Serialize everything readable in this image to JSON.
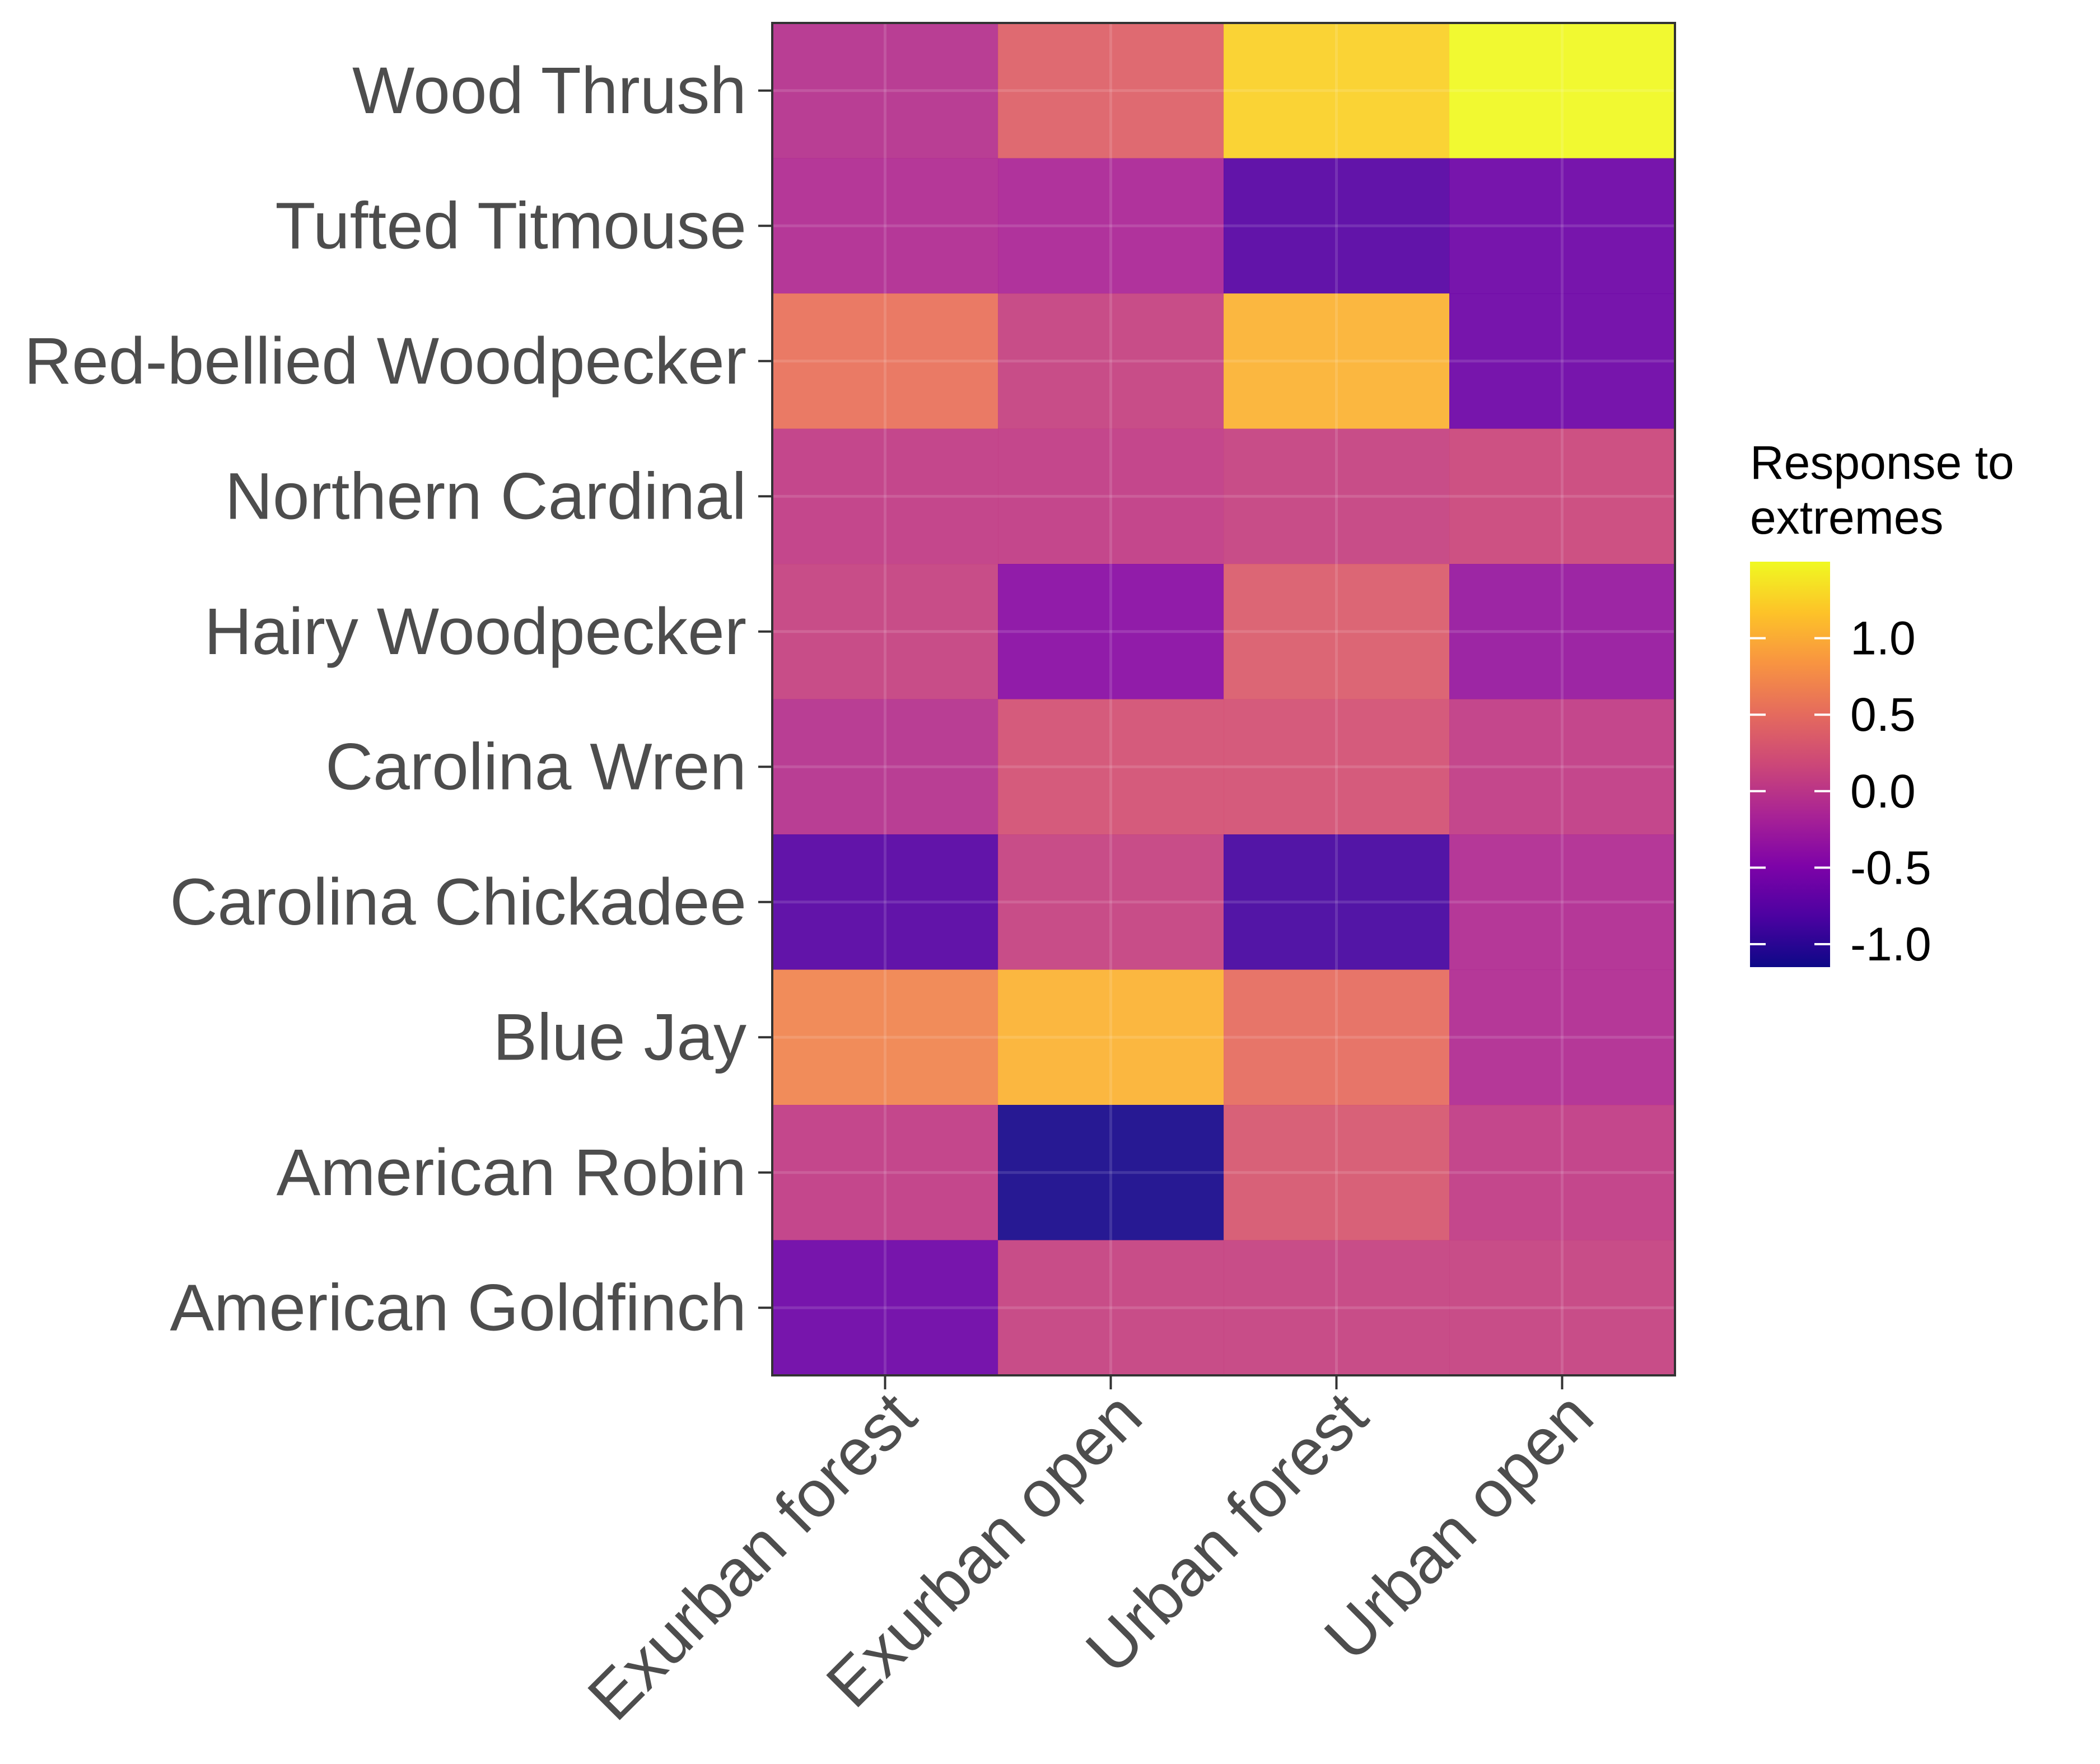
{
  "chart_data": {
    "type": "heatmap",
    "x_categories": [
      "Exurban forest",
      "Exurban open",
      "Urban forest",
      "Urban open"
    ],
    "y_categories": [
      "Wood Thrush",
      "Tufted Titmouse",
      "Red-bellied Woodpecker",
      "Northern Cardinal",
      "Hairy Woodpecker",
      "Carolina Wren",
      "Carolina Chickadee",
      "Blue Jay",
      "American Robin",
      "American Goldfinch"
    ],
    "values": [
      [
        -0.05,
        0.4,
        1.25,
        1.5
      ],
      [
        -0.1,
        -0.15,
        -0.75,
        -0.6
      ],
      [
        0.55,
        0.1,
        1.05,
        -0.6
      ],
      [
        0.05,
        0.05,
        0.1,
        0.15
      ],
      [
        0.1,
        -0.4,
        0.35,
        -0.3
      ],
      [
        -0.05,
        0.25,
        0.25,
        0.05
      ],
      [
        -0.75,
        0.1,
        -0.85,
        -0.1
      ],
      [
        0.7,
        1.05,
        0.5,
        -0.1
      ],
      [
        0.05,
        -1.1,
        0.3,
        0.05
      ],
      [
        -0.6,
        0.1,
        0.1,
        0.1
      ]
    ],
    "colorscale": "plasma",
    "value_range": [
      -1.15,
      1.5
    ],
    "legend": {
      "title_lines": [
        "Response to",
        " extremes"
      ],
      "ticks": [
        1.0,
        0.5,
        0.0,
        -0.5,
        -1.0
      ],
      "tick_labels": [
        "1.0",
        "0.5",
        "0.0",
        "-0.5",
        "-1.0"
      ],
      "placement": "right"
    },
    "xlabel": "",
    "ylabel": "",
    "grid": true,
    "cell_alpha": 0.93
  }
}
